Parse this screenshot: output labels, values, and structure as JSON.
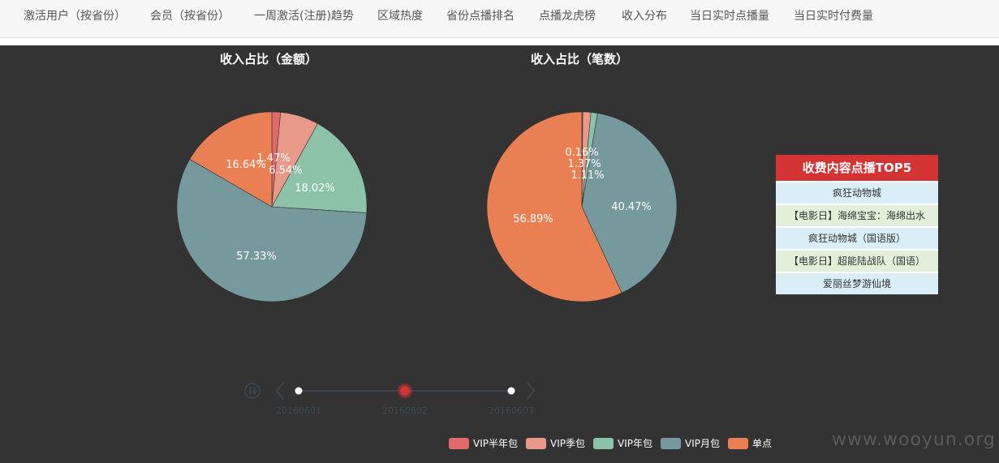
{
  "nav": {
    "tabs": [
      {
        "label": "激活用户（按省份）"
      },
      {
        "label": "会员（按省份）"
      },
      {
        "label": "一周激活(注册)趋势"
      },
      {
        "label": "区域热度"
      },
      {
        "label": "省份点播排名"
      },
      {
        "label": "点播龙虎榜"
      },
      {
        "label": "收入分布"
      },
      {
        "label": "当日实时点播量"
      },
      {
        "label": "当日实时付费量"
      }
    ]
  },
  "colors": {
    "vip_half_year": "#e06a6a",
    "vip_season": "#e8998a",
    "vip_year": "#8cc3a8",
    "vip_month": "#75999c",
    "single": "#e97f52"
  },
  "chart_data": [
    {
      "type": "pie",
      "title": "收入占比（金额）",
      "slices": [
        {
          "label": "VIP半年包",
          "value": 1.47,
          "display": "1.47%"
        },
        {
          "label": "VIP季包",
          "value": 6.54,
          "display": "6.54%"
        },
        {
          "label": "VIP年包",
          "value": 18.02,
          "display": "18.02%"
        },
        {
          "label": "VIP月包",
          "value": 57.33,
          "display": "57.33%"
        },
        {
          "label": "单点",
          "value": 16.64,
          "display": "16.64%"
        }
      ]
    },
    {
      "type": "pie",
      "title": "收入占比（笔数）",
      "slices": [
        {
          "label": "VIP半年包",
          "value": 0.16,
          "display": "0.16%"
        },
        {
          "label": "VIP季包",
          "value": 1.37,
          "display": "1.37%"
        },
        {
          "label": "VIP年包",
          "value": 1.11,
          "display": "1.11%"
        },
        {
          "label": "VIP月包",
          "value": 40.47,
          "display": "40.47%"
        },
        {
          "label": "单点",
          "value": 56.89,
          "display": "56.89%"
        }
      ]
    }
  ],
  "top5": {
    "title": "收费内容点播TOP5",
    "items": [
      "疯狂动物城",
      "【电影日】海绵宝宝：海绵出水",
      "疯狂动物城（国语版）",
      "【电影日】超能陆战队（国语）",
      "爱丽丝梦游仙境"
    ]
  },
  "timeline": {
    "dates": [
      "20160601",
      "20160602",
      "20160603"
    ],
    "current_index": 1,
    "play_icon": "pause-icon"
  },
  "legend": {
    "items": [
      "VIP半年包",
      "VIP季包",
      "VIP年包",
      "VIP月包",
      "单点"
    ]
  },
  "watermark": "www.wooyun.org"
}
